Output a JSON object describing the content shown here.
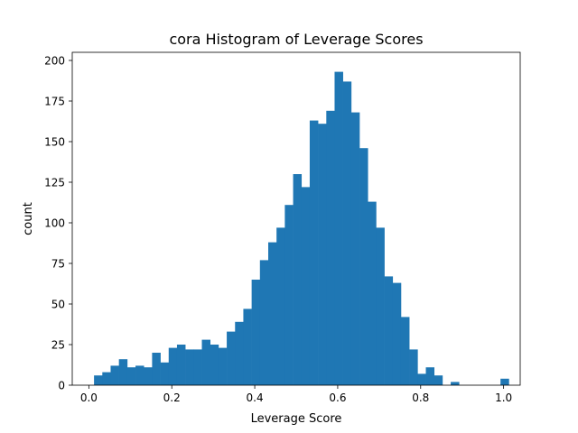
{
  "chart_data": {
    "type": "bar",
    "title": "cora Histogram of Leverage Scores",
    "xlabel": "Leverage Score",
    "ylabel": "count",
    "xlim": [
      -0.04,
      1.04
    ],
    "ylim": [
      0,
      205
    ],
    "xticks": [
      0.0,
      0.2,
      0.4,
      0.6,
      0.8,
      1.0
    ],
    "xtick_labels": [
      "0.0",
      "0.2",
      "0.4",
      "0.6",
      "0.8",
      "1.0"
    ],
    "yticks": [
      0,
      25,
      50,
      75,
      100,
      125,
      150,
      175,
      200
    ],
    "ytick_labels": [
      "0",
      "25",
      "50",
      "75",
      "100",
      "125",
      "150",
      "175",
      "200"
    ],
    "grid": false,
    "bar_color": "#1f77b4",
    "bins": {
      "start": 0.0125,
      "width": 0.02,
      "count": 50
    },
    "values": [
      6,
      8,
      12,
      16,
      11,
      12,
      11,
      20,
      14,
      23,
      25,
      22,
      22,
      28,
      25,
      23,
      33,
      39,
      47,
      65,
      77,
      88,
      97,
      111,
      130,
      122,
      163,
      161,
      169,
      193,
      187,
      168,
      146,
      113,
      97,
      67,
      63,
      42,
      22,
      7,
      11,
      6,
      0,
      2,
      0,
      0,
      0,
      0,
      0,
      4
    ]
  }
}
